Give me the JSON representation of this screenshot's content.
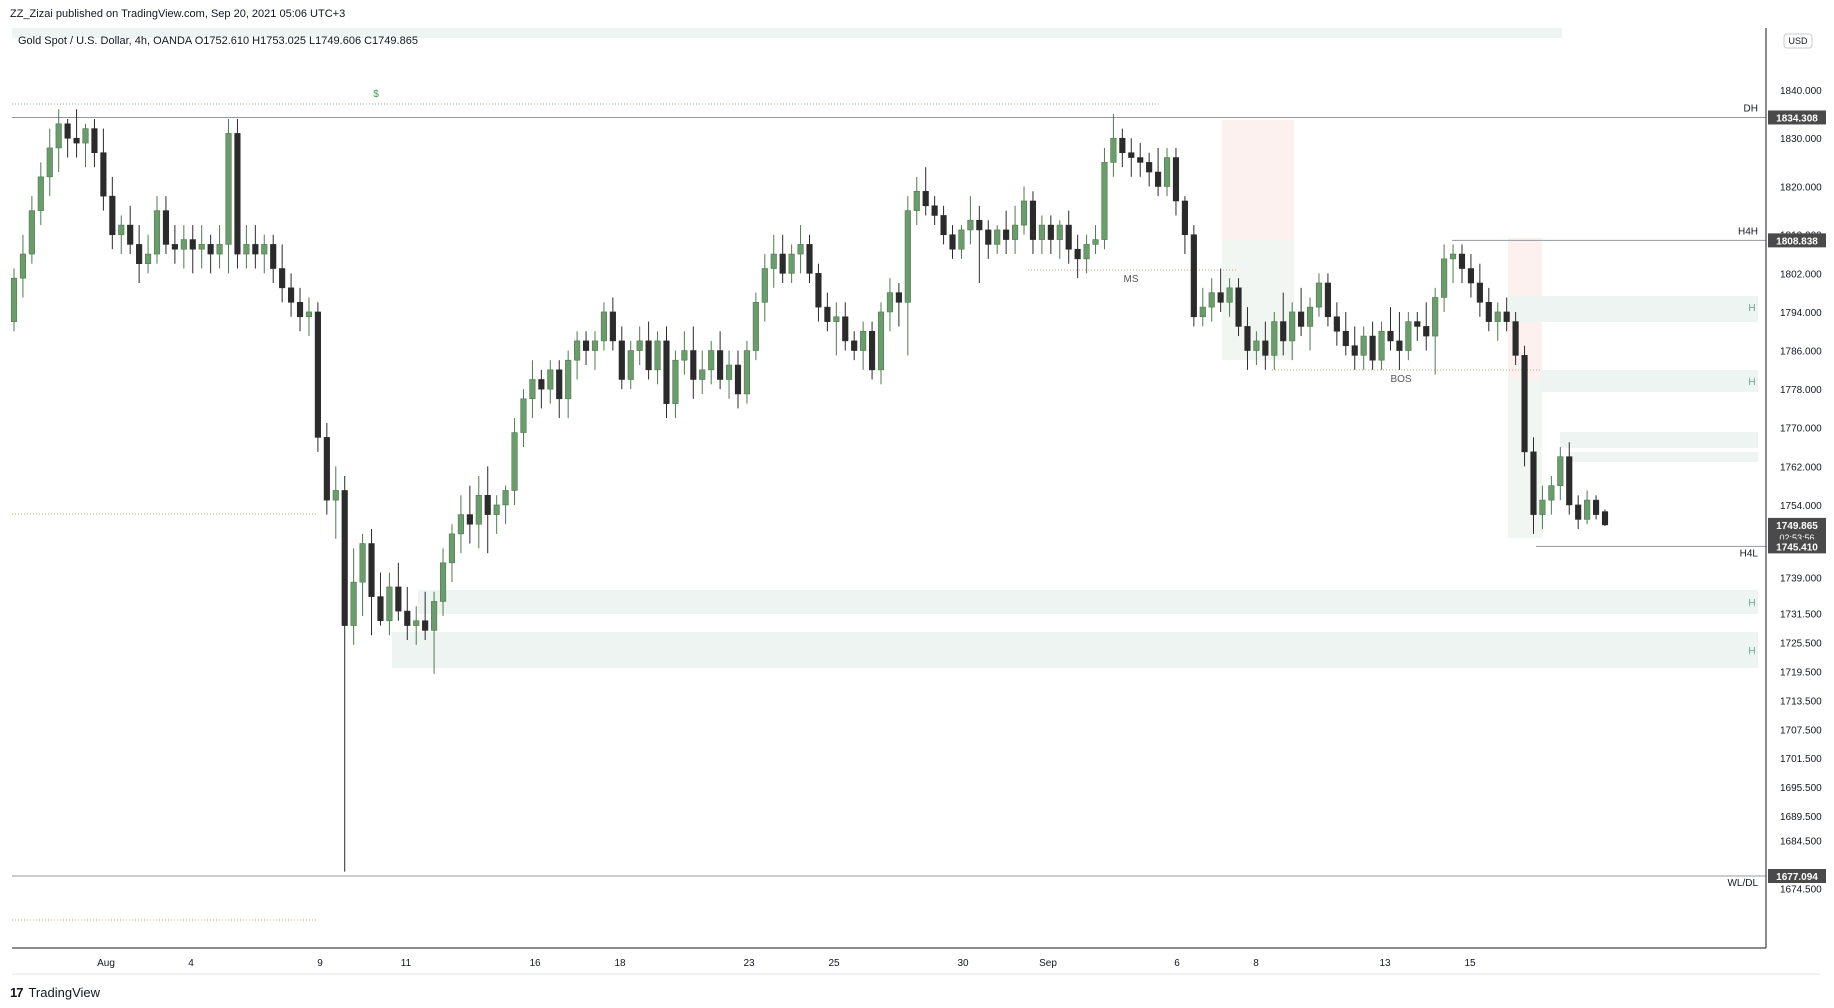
{
  "header": {
    "publisher_line": "ZZ_Zizai published on TradingView.com, Sep 20, 2021 05:06 UTC+3"
  },
  "footer": {
    "brand": "TradingView"
  },
  "colors": {
    "up": "#6b9c6b",
    "down": "#2b2b2b",
    "grid_line": "#131722",
    "zone_fill": "#eef4f2",
    "supply_fill": "#fdf1ef",
    "hline": "#9598a1",
    "dotted": "#c7a27c",
    "label_bg": "#4a4a4a"
  },
  "chart_data": {
    "type": "candlestick",
    "title": "Gold Spot / U.S. Dollar, 4h, OANDA",
    "ohlc_readout": {
      "open": "O1752.610",
      "high": "H1753.025",
      "low": "L1749.606",
      "close": "C1749.865"
    },
    "currency": "USD",
    "ylim": [
      1670,
      1850
    ],
    "y_ticks": [
      1674.5,
      1684.5,
      1689.5,
      1695.5,
      1701.5,
      1707.5,
      1713.5,
      1719.5,
      1725.5,
      1731.5,
      1739.0,
      1746.0,
      1754.0,
      1762.0,
      1770.0,
      1778.0,
      1786.0,
      1794.0,
      1802.0,
      1810.0,
      1820.0,
      1830.0,
      1840.0
    ],
    "x_ticks": [
      "Aug",
      "4",
      "9",
      "11",
      "16",
      "18",
      "23",
      "25",
      "30",
      "Sep",
      "6",
      "8",
      "13",
      "15"
    ],
    "price_labels": [
      {
        "label": "DH",
        "value": "1834.308"
      },
      {
        "label": "H4H",
        "value": "1808.838"
      },
      {
        "label": "",
        "value": "1749.865",
        "sub": "02:53:56",
        "current": true
      },
      {
        "label": "H4L",
        "value": "1745.410"
      },
      {
        "label": "WL/DL",
        "value": "1677.094"
      }
    ],
    "annotations": [
      "$",
      "MS",
      "BOS",
      "H",
      "H",
      "H",
      "H"
    ],
    "candles": [
      [
        1792,
        1803,
        1790,
        1801
      ],
      [
        1801,
        1810,
        1797,
        1806
      ],
      [
        1806,
        1818,
        1804,
        1815
      ],
      [
        1815,
        1825,
        1812,
        1822
      ],
      [
        1822,
        1832,
        1818,
        1828
      ],
      [
        1828,
        1836,
        1823,
        1833
      ],
      [
        1833,
        1834,
        1826,
        1830
      ],
      [
        1830,
        1836,
        1826,
        1829
      ],
      [
        1829,
        1833,
        1824,
        1832
      ],
      [
        1832,
        1834,
        1824,
        1827
      ],
      [
        1827,
        1832,
        1815,
        1818
      ],
      [
        1818,
        1822,
        1807,
        1810
      ],
      [
        1810,
        1814,
        1806,
        1812
      ],
      [
        1812,
        1816,
        1806,
        1808
      ],
      [
        1808,
        1812,
        1800,
        1804
      ],
      [
        1804,
        1810,
        1802,
        1806
      ],
      [
        1806,
        1818,
        1804,
        1815
      ],
      [
        1815,
        1818,
        1806,
        1808
      ],
      [
        1808,
        1812,
        1804,
        1807
      ],
      [
        1807,
        1812,
        1803,
        1809
      ],
      [
        1809,
        1812,
        1802,
        1807
      ],
      [
        1807,
        1812,
        1803,
        1808
      ],
      [
        1808,
        1810,
        1802,
        1806
      ],
      [
        1806,
        1812,
        1803,
        1808
      ],
      [
        1808,
        1834,
        1802,
        1831
      ],
      [
        1831,
        1834,
        1803,
        1806
      ],
      [
        1806,
        1812,
        1803,
        1808
      ],
      [
        1808,
        1812,
        1803,
        1806
      ],
      [
        1806,
        1810,
        1802,
        1808
      ],
      [
        1808,
        1810,
        1800,
        1803
      ],
      [
        1803,
        1808,
        1796,
        1799
      ],
      [
        1799,
        1802,
        1793,
        1796
      ],
      [
        1796,
        1799,
        1790,
        1793
      ],
      [
        1793,
        1797,
        1789,
        1794
      ],
      [
        1794,
        1796,
        1765,
        1768
      ],
      [
        1768,
        1771,
        1752,
        1755
      ],
      [
        1755,
        1762,
        1747,
        1757
      ],
      [
        1757,
        1760,
        1678,
        1729
      ],
      [
        1729,
        1745,
        1725,
        1738
      ],
      [
        1738,
        1748,
        1731,
        1746
      ],
      [
        1746,
        1749,
        1727,
        1735
      ],
      [
        1735,
        1740,
        1729,
        1730
      ],
      [
        1730,
        1740,
        1727,
        1737
      ],
      [
        1737,
        1742,
        1730,
        1732
      ],
      [
        1732,
        1737,
        1726,
        1729
      ],
      [
        1729,
        1733,
        1725,
        1730
      ],
      [
        1730,
        1736,
        1726,
        1728
      ],
      [
        1728,
        1736,
        1719,
        1734
      ],
      [
        1734,
        1745,
        1731,
        1742
      ],
      [
        1742,
        1750,
        1738,
        1748
      ],
      [
        1748,
        1756,
        1744,
        1752
      ],
      [
        1752,
        1758,
        1746,
        1750
      ],
      [
        1750,
        1760,
        1745,
        1756
      ],
      [
        1756,
        1762,
        1744,
        1752
      ],
      [
        1752,
        1756,
        1748,
        1754
      ],
      [
        1754,
        1758,
        1750,
        1757
      ],
      [
        1757,
        1772,
        1754,
        1769
      ],
      [
        1769,
        1778,
        1766,
        1776
      ],
      [
        1776,
        1784,
        1772,
        1780
      ],
      [
        1780,
        1782,
        1774,
        1778
      ],
      [
        1778,
        1784,
        1775,
        1782
      ],
      [
        1782,
        1784,
        1772,
        1776
      ],
      [
        1776,
        1786,
        1772,
        1784
      ],
      [
        1784,
        1790,
        1780,
        1788
      ],
      [
        1788,
        1790,
        1783,
        1786
      ],
      [
        1786,
        1790,
        1782,
        1788
      ],
      [
        1788,
        1796,
        1786,
        1794
      ],
      [
        1794,
        1797,
        1786,
        1788
      ],
      [
        1788,
        1791,
        1778,
        1780
      ],
      [
        1780,
        1788,
        1778,
        1786
      ],
      [
        1786,
        1791,
        1783,
        1788
      ],
      [
        1788,
        1792,
        1780,
        1782
      ],
      [
        1782,
        1790,
        1779,
        1788
      ],
      [
        1788,
        1791,
        1772,
        1775
      ],
      [
        1775,
        1786,
        1772,
        1784
      ],
      [
        1784,
        1790,
        1781,
        1786
      ],
      [
        1786,
        1791,
        1776,
        1780
      ],
      [
        1780,
        1786,
        1777,
        1782
      ],
      [
        1782,
        1788,
        1779,
        1786
      ],
      [
        1786,
        1790,
        1778,
        1780
      ],
      [
        1780,
        1786,
        1776,
        1783
      ],
      [
        1783,
        1786,
        1774,
        1777
      ],
      [
        1777,
        1788,
        1775,
        1786
      ],
      [
        1786,
        1798,
        1784,
        1796
      ],
      [
        1796,
        1806,
        1792,
        1803
      ],
      [
        1803,
        1810,
        1799,
        1806
      ],
      [
        1806,
        1810,
        1800,
        1802
      ],
      [
        1802,
        1808,
        1800,
        1806
      ],
      [
        1806,
        1812,
        1802,
        1808
      ],
      [
        1808,
        1810,
        1800,
        1802
      ],
      [
        1802,
        1804,
        1792,
        1795
      ],
      [
        1795,
        1798,
        1790,
        1792
      ],
      [
        1792,
        1796,
        1785,
        1793
      ],
      [
        1793,
        1796,
        1786,
        1788
      ],
      [
        1788,
        1790,
        1784,
        1786
      ],
      [
        1786,
        1792,
        1782,
        1790
      ],
      [
        1790,
        1792,
        1780,
        1782
      ],
      [
        1782,
        1796,
        1779,
        1794
      ],
      [
        1794,
        1801,
        1790,
        1798
      ],
      [
        1798,
        1800,
        1791,
        1796
      ],
      [
        1796,
        1818,
        1785,
        1815
      ],
      [
        1815,
        1822,
        1812,
        1819
      ],
      [
        1819,
        1824,
        1814,
        1816
      ],
      [
        1816,
        1818,
        1812,
        1814
      ],
      [
        1814,
        1816,
        1808,
        1810
      ],
      [
        1810,
        1812,
        1805,
        1807
      ],
      [
        1807,
        1812,
        1805,
        1811
      ],
      [
        1811,
        1818,
        1808,
        1813
      ],
      [
        1813,
        1816,
        1800,
        1811
      ],
      [
        1811,
        1813,
        1805,
        1808
      ],
      [
        1808,
        1812,
        1806,
        1811
      ],
      [
        1811,
        1815,
        1806,
        1809
      ],
      [
        1809,
        1816,
        1806,
        1812
      ],
      [
        1812,
        1820,
        1810,
        1817
      ],
      [
        1817,
        1819,
        1806,
        1809
      ],
      [
        1809,
        1814,
        1806,
        1812
      ],
      [
        1812,
        1814,
        1806,
        1809
      ],
      [
        1809,
        1813,
        1805,
        1812
      ],
      [
        1812,
        1815,
        1804,
        1807
      ],
      [
        1807,
        1810,
        1801,
        1805
      ],
      [
        1805,
        1810,
        1802,
        1808
      ],
      [
        1808,
        1812,
        1806,
        1809
      ],
      [
        1809,
        1828,
        1807,
        1825
      ],
      [
        1825,
        1835,
        1822,
        1830
      ],
      [
        1830,
        1832,
        1824,
        1827
      ],
      [
        1827,
        1830,
        1822,
        1826
      ],
      [
        1826,
        1829,
        1822,
        1825
      ],
      [
        1825,
        1827,
        1820,
        1823
      ],
      [
        1823,
        1828,
        1818,
        1820
      ],
      [
        1820,
        1828,
        1818,
        1826
      ],
      [
        1826,
        1828,
        1814,
        1817
      ],
      [
        1817,
        1818,
        1806,
        1810
      ],
      [
        1810,
        1812,
        1791,
        1793
      ],
      [
        1793,
        1799,
        1791,
        1795
      ],
      [
        1795,
        1801,
        1792,
        1798
      ],
      [
        1798,
        1803,
        1794,
        1796
      ],
      [
        1796,
        1801,
        1793,
        1799
      ],
      [
        1799,
        1801,
        1789,
        1791
      ],
      [
        1791,
        1795,
        1782,
        1786
      ],
      [
        1786,
        1790,
        1783,
        1788
      ],
      [
        1788,
        1792,
        1782,
        1785
      ],
      [
        1785,
        1794,
        1782,
        1792
      ],
      [
        1792,
        1798,
        1785,
        1788
      ],
      [
        1788,
        1796,
        1784,
        1794
      ],
      [
        1794,
        1799,
        1789,
        1791
      ],
      [
        1791,
        1797,
        1786,
        1795
      ],
      [
        1795,
        1802,
        1793,
        1800
      ],
      [
        1800,
        1802,
        1791,
        1793
      ],
      [
        1793,
        1796,
        1787,
        1790
      ],
      [
        1790,
        1794,
        1785,
        1787
      ],
      [
        1787,
        1791,
        1782,
        1785
      ],
      [
        1785,
        1791,
        1782,
        1789
      ],
      [
        1789,
        1792,
        1782,
        1784
      ],
      [
        1784,
        1792,
        1782,
        1790
      ],
      [
        1790,
        1795,
        1786,
        1788
      ],
      [
        1788,
        1794,
        1782,
        1786
      ],
      [
        1786,
        1794,
        1784,
        1792
      ],
      [
        1792,
        1794,
        1788,
        1791
      ],
      [
        1791,
        1796,
        1786,
        1789
      ],
      [
        1789,
        1799,
        1781,
        1797
      ],
      [
        1797,
        1808,
        1794,
        1805
      ],
      [
        1805,
        1808,
        1800,
        1806
      ],
      [
        1806,
        1808,
        1800,
        1803
      ],
      [
        1803,
        1806,
        1797,
        1800
      ],
      [
        1800,
        1804,
        1793,
        1796
      ],
      [
        1796,
        1799,
        1790,
        1792
      ],
      [
        1792,
        1796,
        1788,
        1794
      ],
      [
        1794,
        1797,
        1790,
        1792
      ],
      [
        1792,
        1794,
        1783,
        1785
      ],
      [
        1785,
        1787,
        1762,
        1765
      ],
      [
        1765,
        1768,
        1748,
        1752
      ],
      [
        1752,
        1758,
        1749,
        1755
      ],
      [
        1755,
        1760,
        1752,
        1758
      ],
      [
        1758,
        1766,
        1755,
        1764
      ],
      [
        1764,
        1767,
        1752,
        1754
      ],
      [
        1754,
        1756,
        1749,
        1751
      ],
      [
        1751,
        1757,
        1750,
        1755
      ],
      [
        1755,
        1756,
        1751,
        1752
      ],
      [
        1752.61,
        1753.03,
        1749.61,
        1749.87
      ]
    ]
  }
}
